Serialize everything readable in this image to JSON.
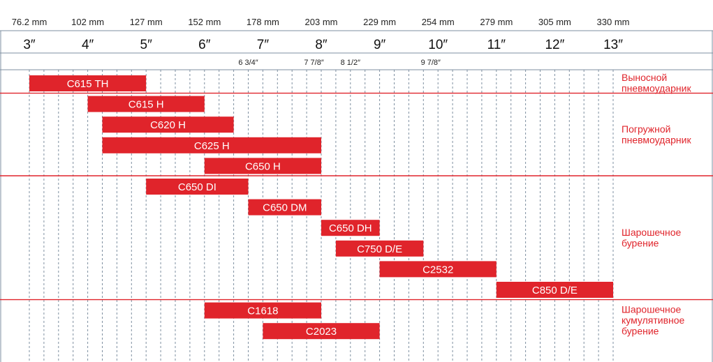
{
  "chart_data": {
    "type": "bar",
    "orientation": "horizontal-range",
    "x_unit": "inch",
    "xlim": [
      2.95,
      13.2
    ],
    "grid": true,
    "colors": {
      "bar": "#e0242b",
      "separator": "#e0242b",
      "grid": "#7e8fa0",
      "label": "#e0242b"
    },
    "mm_ticks": [
      {
        "x": 3,
        "label": "76.2 mm"
      },
      {
        "x": 4,
        "label": "102 mm"
      },
      {
        "x": 5,
        "label": "127 mm"
      },
      {
        "x": 6,
        "label": "152 mm"
      },
      {
        "x": 7,
        "label": "178 mm"
      },
      {
        "x": 8,
        "label": "203 mm"
      },
      {
        "x": 9,
        "label": "229 mm"
      },
      {
        "x": 10,
        "label": "254 mm"
      },
      {
        "x": 11,
        "label": "279 mm"
      },
      {
        "x": 12,
        "label": "305 mm"
      },
      {
        "x": 13,
        "label": "330 mm"
      }
    ],
    "inch_ticks": [
      {
        "x": 3,
        "label": "3″"
      },
      {
        "x": 4,
        "label": "4″"
      },
      {
        "x": 5,
        "label": "5″"
      },
      {
        "x": 6,
        "label": "6″"
      },
      {
        "x": 7,
        "label": "7″"
      },
      {
        "x": 8,
        "label": "8″"
      },
      {
        "x": 9,
        "label": "9″"
      },
      {
        "x": 10,
        "label": "10″"
      },
      {
        "x": 11,
        "label": "11″"
      },
      {
        "x": 12,
        "label": "12″"
      },
      {
        "x": 13,
        "label": "13″"
      }
    ],
    "fraction_ticks": [
      {
        "x": 6.75,
        "label": "6 3/4″"
      },
      {
        "x": 7.875,
        "label": "7 7/8″"
      },
      {
        "x": 8.5,
        "label": "8 1/2″"
      },
      {
        "x": 9.875,
        "label": "9 7/8″"
      }
    ],
    "grid_step": 0.25,
    "groups": [
      {
        "label": [
          "Выносной",
          "пневмоударник"
        ],
        "rows": 1
      },
      {
        "label": [
          "Погружной",
          "пневмоударник"
        ],
        "rows": 4
      },
      {
        "label": [
          "Шарошечное",
          "бурение"
        ],
        "rows": 6
      },
      {
        "label": [
          "Шарошечное",
          "кумулятивное",
          "бурение"
        ],
        "rows": 2
      }
    ],
    "bars": [
      {
        "name": "C615 TH",
        "start": 3,
        "end": 5
      },
      {
        "name": "C615 H",
        "start": 4,
        "end": 6
      },
      {
        "name": "C620 H",
        "start": 4.25,
        "end": 6.5
      },
      {
        "name": "C625 H",
        "start": 4.25,
        "end": 8
      },
      {
        "name": "C650 H",
        "start": 6,
        "end": 8
      },
      {
        "name": "C650 DI",
        "start": 5,
        "end": 6.75
      },
      {
        "name": "C650 DM",
        "start": 6.75,
        "end": 8
      },
      {
        "name": "C650 DH",
        "start": 8,
        "end": 9
      },
      {
        "name": "C750 D/E",
        "start": 8.25,
        "end": 9.75
      },
      {
        "name": "C2532",
        "start": 9,
        "end": 11
      },
      {
        "name": "C850 D/E",
        "start": 11,
        "end": 13
      },
      {
        "name": "C1618",
        "start": 6,
        "end": 8
      },
      {
        "name": "C2023",
        "start": 7,
        "end": 9
      }
    ]
  }
}
